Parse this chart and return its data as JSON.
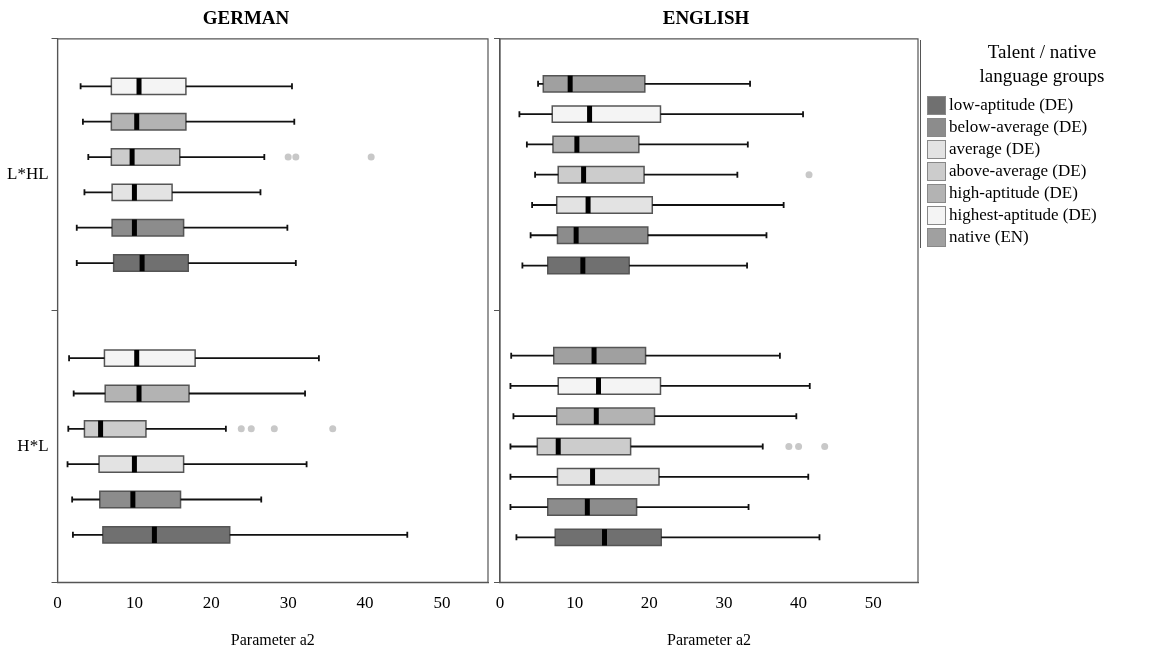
{
  "chart_data": [
    {
      "type": "box",
      "title": "GERMAN",
      "xlabel": "Parameter a2",
      "orientation": "horizontal",
      "categories": [
        "L*HL",
        "H*L"
      ],
      "xlim": [
        0,
        56
      ],
      "xticks": [
        0,
        10,
        20,
        30,
        40,
        50
      ],
      "series": [
        {
          "color": "#f4f4f4",
          "boxes": [
            {
              "low": 3.0,
              "q1": 7.0,
              "median": 10.6,
              "q3": 16.7,
              "high": 30.5
            },
            {
              "low": 1.5,
              "q1": 6.1,
              "median": 10.3,
              "q3": 17.9,
              "high": 34.0
            }
          ]
        },
        {
          "color": "#b3b3b3",
          "boxes": [
            {
              "low": 3.3,
              "q1": 7.0,
              "median": 10.3,
              "q3": 16.7,
              "high": 30.8
            },
            {
              "low": 2.1,
              "q1": 6.2,
              "median": 10.6,
              "q3": 17.1,
              "high": 32.2
            }
          ]
        },
        {
          "color": "#cccccc",
          "boxes": [
            {
              "low": 4.0,
              "q1": 7.0,
              "median": 9.7,
              "q3": 15.9,
              "high": 26.9,
              "outliers": [
                30.0,
                31.0,
                40.8
              ]
            },
            {
              "low": 1.4,
              "q1": 3.5,
              "median": 5.6,
              "q3": 11.5,
              "high": 21.9,
              "outliers": [
                23.9,
                25.2,
                28.2,
                35.8
              ]
            }
          ]
        },
        {
          "color": "#e3e3e3",
          "boxes": [
            {
              "low": 3.5,
              "q1": 7.1,
              "median": 10.0,
              "q3": 14.9,
              "high": 26.4
            },
            {
              "low": 1.3,
              "q1": 5.4,
              "median": 10.0,
              "q3": 16.4,
              "high": 32.4
            }
          ]
        },
        {
          "color": "#8c8c8c",
          "boxes": [
            {
              "low": 2.5,
              "q1": 7.1,
              "median": 10.0,
              "q3": 16.4,
              "high": 29.9
            },
            {
              "low": 1.9,
              "q1": 5.5,
              "median": 9.8,
              "q3": 16.0,
              "high": 26.5
            }
          ]
        },
        {
          "color": "#707070",
          "boxes": [
            {
              "low": 2.5,
              "q1": 7.3,
              "median": 11.0,
              "q3": 17.0,
              "high": 31.0
            },
            {
              "low": 2.0,
              "q1": 5.9,
              "median": 12.6,
              "q3": 22.4,
              "high": 45.5
            }
          ]
        }
      ]
    },
    {
      "type": "box",
      "title": "ENGLISH",
      "xlabel": "Parameter a2",
      "orientation": "horizontal",
      "categories": [
        null,
        null
      ],
      "xlim": [
        0,
        56
      ],
      "xticks": [
        0,
        10,
        20,
        30,
        40,
        50
      ],
      "tick_labels": "x",
      "legend": "right",
      "legend_title": "Talent / native language groups",
      "series": [
        {
          "name": "native (EN)",
          "color": "#a0a0a0",
          "boxes": [
            {
              "low": 5.1,
              "q1": 5.8,
              "median": 9.4,
              "q3": 19.4,
              "high": 33.5
            },
            {
              "low": 1.5,
              "q1": 7.2,
              "median": 12.6,
              "q3": 19.5,
              "high": 37.5
            }
          ]
        },
        {
          "name": "highest-aptitude (DE)",
          "color": "#f4f4f4",
          "boxes": [
            {
              "low": 2.6,
              "q1": 7.0,
              "median": 12.0,
              "q3": 21.5,
              "high": 40.6
            },
            {
              "low": 1.4,
              "q1": 7.8,
              "median": 13.2,
              "q3": 21.5,
              "high": 41.5
            }
          ]
        },
        {
          "name": "high-aptitude (DE)",
          "color": "#b3b3b3",
          "boxes": [
            {
              "low": 3.6,
              "q1": 7.1,
              "median": 10.3,
              "q3": 18.6,
              "high": 33.2
            },
            {
              "low": 1.8,
              "q1": 7.6,
              "median": 12.9,
              "q3": 20.7,
              "high": 39.7
            }
          ]
        },
        {
          "name": "above-average (DE)",
          "color": "#cccccc",
          "boxes": [
            {
              "low": 4.7,
              "q1": 7.8,
              "median": 11.2,
              "q3": 19.3,
              "high": 31.8,
              "outliers": [
                41.4
              ]
            },
            {
              "low": 1.4,
              "q1": 5.0,
              "median": 7.8,
              "q3": 17.5,
              "high": 35.2,
              "outliers": [
                38.7,
                40.0,
                43.5
              ]
            }
          ]
        },
        {
          "name": "average (DE)",
          "color": "#e3e3e3",
          "boxes": [
            {
              "low": 4.3,
              "q1": 7.6,
              "median": 11.8,
              "q3": 20.4,
              "high": 38.0
            },
            {
              "low": 1.4,
              "q1": 7.7,
              "median": 12.4,
              "q3": 21.3,
              "high": 41.3
            }
          ]
        },
        {
          "name": "below-average (DE)",
          "color": "#8c8c8c",
          "boxes": [
            {
              "low": 4.1,
              "q1": 7.7,
              "median": 10.2,
              "q3": 19.8,
              "high": 35.7
            },
            {
              "low": 1.4,
              "q1": 6.4,
              "median": 11.7,
              "q3": 18.3,
              "high": 33.3
            }
          ]
        },
        {
          "name": "low-aptitude (DE)",
          "color": "#707070",
          "boxes": [
            {
              "low": 3.0,
              "q1": 6.4,
              "median": 11.1,
              "q3": 17.3,
              "high": 33.1
            },
            {
              "low": 2.2,
              "q1": 7.4,
              "median": 14.0,
              "q3": 21.6,
              "high": 42.8
            }
          ]
        }
      ]
    }
  ]
}
